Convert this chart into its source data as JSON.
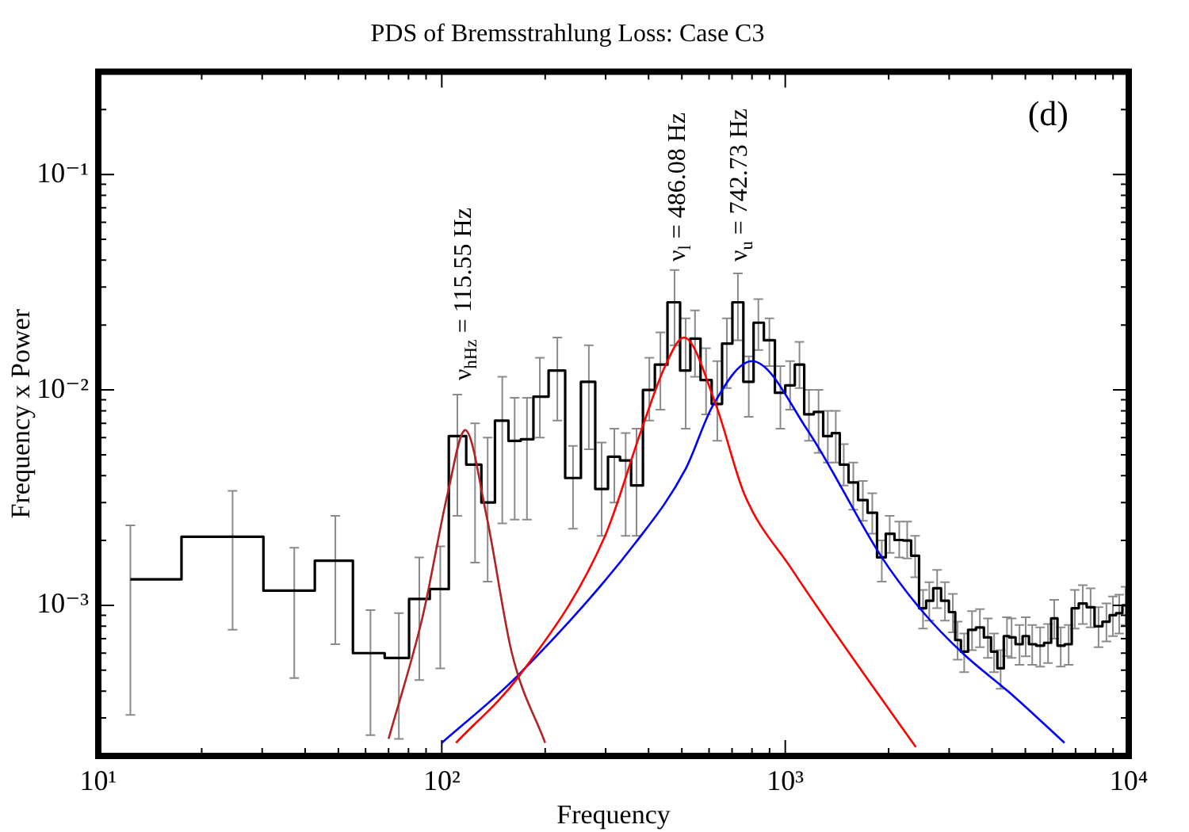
{
  "chart_data": {
    "type": "line",
    "title": "PDS of Bremsstrahlung Loss: Case C3",
    "xlabel": "Frequency",
    "ylabel": "Frequency x Power",
    "log": "xy",
    "grid": false,
    "legend": false,
    "marker": "none",
    "xlim": [
      10,
      10000
    ],
    "xticks": [
      {
        "value": 10,
        "label": "10¹"
      },
      {
        "value": 20,
        "label": null
      },
      {
        "value": 30,
        "label": null
      },
      {
        "value": 40,
        "label": null
      },
      {
        "value": 50,
        "label": null
      },
      {
        "value": 60,
        "label": null
      },
      {
        "value": 70,
        "label": null
      },
      {
        "value": 80,
        "label": null
      },
      {
        "value": 90,
        "label": null
      },
      {
        "value": 100,
        "label": "10²"
      },
      {
        "value": 200,
        "label": null
      },
      {
        "value": 300,
        "label": null
      },
      {
        "value": 400,
        "label": null
      },
      {
        "value": 500,
        "label": null
      },
      {
        "value": 600,
        "label": null
      },
      {
        "value": 700,
        "label": null
      },
      {
        "value": 800,
        "label": null
      },
      {
        "value": 900,
        "label": null
      },
      {
        "value": 1000,
        "label": "10³"
      },
      {
        "value": 2000,
        "label": null
      },
      {
        "value": 3000,
        "label": null
      },
      {
        "value": 4000,
        "label": null
      },
      {
        "value": 5000,
        "label": null
      },
      {
        "value": 6000,
        "label": null
      },
      {
        "value": 7000,
        "label": null
      },
      {
        "value": 8000,
        "label": null
      },
      {
        "value": 9000,
        "label": null
      },
      {
        "value": 10000,
        "label": "10⁴"
      }
    ],
    "ylim": [
      0.0002,
      0.3
    ],
    "yticks": [
      {
        "value": 0.0003,
        "label": null
      },
      {
        "value": 0.0004,
        "label": null
      },
      {
        "value": 0.0005,
        "label": null
      },
      {
        "value": 0.0006,
        "label": null
      },
      {
        "value": 0.0007,
        "label": null
      },
      {
        "value": 0.0008,
        "label": null
      },
      {
        "value": 0.0009,
        "label": null
      },
      {
        "value": 0.001,
        "label": "10⁻³"
      },
      {
        "value": 0.002,
        "label": null
      },
      {
        "value": 0.003,
        "label": null
      },
      {
        "value": 0.004,
        "label": null
      },
      {
        "value": 0.005,
        "label": null
      },
      {
        "value": 0.006,
        "label": null
      },
      {
        "value": 0.007,
        "label": null
      },
      {
        "value": 0.008,
        "label": null
      },
      {
        "value": 0.009,
        "label": null
      },
      {
        "value": 0.01,
        "label": "10⁻²"
      },
      {
        "value": 0.02,
        "label": null
      },
      {
        "value": 0.03,
        "label": null
      },
      {
        "value": 0.04,
        "label": null
      },
      {
        "value": 0.05,
        "label": null
      },
      {
        "value": 0.06,
        "label": null
      },
      {
        "value": 0.07,
        "label": null
      },
      {
        "value": 0.08,
        "label": null
      },
      {
        "value": 0.09,
        "label": null
      },
      {
        "value": 0.1,
        "label": "10⁻¹"
      },
      {
        "value": 0.2,
        "label": null
      },
      {
        "value": 0.3,
        "label": null
      }
    ],
    "annotations": [
      "ν$_{hHz}$ = 115.55 Hz",
      "ν$_{l}$ = 486.08 Hz",
      "ν$_{u}$ = 742.73 Hz",
      "(d)"
    ],
    "series": [
      {
        "type": "step",
        "color": "#000000",
        "x": [
          12.4,
          24.6,
          37.2,
          49,
          62,
          75,
          86,
          99,
          111,
          125,
          136,
          150,
          163,
          177,
          193,
          217,
          241,
          268,
          292,
          318,
          343,
          369,
          402,
          433,
          476,
          513,
          546,
          588,
          634,
          676,
          728,
          783,
          835,
          899,
          968,
          1033,
          1100,
          1172,
          1250,
          1330,
          1403,
          1480,
          1578,
          1682,
          1792,
          1910,
          2014,
          2147,
          2264,
          2388,
          2518,
          2626,
          2768,
          2917,
          3075,
          3175,
          3318,
          3497,
          3687,
          3890,
          4055,
          4236,
          4420,
          4560,
          4808,
          5012,
          5236,
          5521,
          5821,
          6067,
          6339,
          6683,
          6966,
          7345,
          7743,
          8166,
          8610,
          8990,
          9380,
          9790
        ],
        "values": [
          0.00132,
          0.00208,
          0.00117,
          0.00161,
          0.0006,
          0.00057,
          0.00107,
          0.00119,
          0.0061,
          0.0045,
          0.003,
          0.0072,
          0.0058,
          0.0059,
          0.0093,
          0.0123,
          0.0039,
          0.0109,
          0.00347,
          0.0049,
          0.0047,
          0.0036,
          0.01,
          0.0131,
          0.0255,
          0.0123,
          0.0173,
          0.0111,
          0.0086,
          0.0164,
          0.0255,
          0.0109,
          0.0205,
          0.017,
          0.0097,
          0.0105,
          0.0131,
          0.0077,
          0.0079,
          0.0061,
          0.0063,
          0.0045,
          0.00372,
          0.00308,
          0.00269,
          0.00167,
          0.00215,
          0.00201,
          0.002,
          0.0017,
          0.00097,
          0.00105,
          0.0012,
          0.00105,
          0.00093,
          0.00069,
          0.00061,
          0.00077,
          0.00079,
          0.00071,
          0.00061,
          0.00051,
          0.00072,
          0.00071,
          0.00066,
          0.00072,
          0.00066,
          0.00065,
          0.00067,
          0.00087,
          0.00065,
          0.00066,
          0.00097,
          0.00102,
          0.00098,
          0.0008,
          0.00084,
          0.0009,
          0.00092,
          0.001
        ],
        "errors": [
          [
            0.00031,
            0.00235
          ],
          [
            0.00077,
            0.0034
          ],
          [
            0.00046,
            0.00185
          ],
          [
            0.00066,
            0.0026
          ],
          [
            0.00025,
            0.00095
          ],
          [
            0.00024,
            0.00092
          ],
          [
            0.00045,
            0.00167
          ],
          [
            0.00051,
            0.00188
          ],
          [
            0.0026,
            0.0095
          ],
          [
            0.00158,
            0.007
          ],
          [
            0.00129,
            0.006
          ],
          [
            0.0024,
            0.0115
          ],
          [
            0.0025,
            0.0092
          ],
          [
            0.0025,
            0.0092
          ],
          [
            0.006,
            0.0141
          ],
          [
            0.0072,
            0.0175
          ],
          [
            0.00227,
            0.0055
          ],
          [
            0.0053,
            0.0161
          ],
          [
            0.0021,
            0.0057
          ],
          [
            0.003,
            0.0066
          ],
          [
            0.0021,
            0.0063
          ],
          [
            0.0021,
            0.0066
          ],
          [
            0.0072,
            0.0141
          ],
          [
            0.0081,
            0.0185
          ],
          [
            0.0161,
            0.036
          ],
          [
            0.0066,
            0.0215
          ],
          [
            0.0115,
            0.0234
          ],
          [
            0.0077,
            0.0156
          ],
          [
            0.0058,
            0.0136
          ],
          [
            0.0102,
            0.0215
          ],
          [
            0.017,
            0.0347
          ],
          [
            0.0075,
            0.0143
          ],
          [
            0.0153,
            0.0264
          ],
          [
            0.0129,
            0.0215
          ],
          [
            0.0066,
            0.0129
          ],
          [
            0.0081,
            0.0136
          ],
          [
            0.0102,
            0.0167
          ],
          [
            0.0058,
            0.01
          ],
          [
            0.0051,
            0.01
          ],
          [
            0.0046,
            0.008
          ],
          [
            0.0046,
            0.008
          ],
          [
            0.0036,
            0.0056
          ],
          [
            0.00278,
            0.0046
          ],
          [
            0.00247,
            0.00378
          ],
          [
            0.00215,
            0.00331
          ],
          [
            0.00129,
            0.002
          ],
          [
            0.00175,
            0.0026
          ],
          [
            0.00167,
            0.00245
          ],
          [
            0.00165,
            0.00245
          ],
          [
            0.00135,
            0.0021
          ],
          [
            0.00078,
            0.00118
          ],
          [
            0.00085,
            0.00128
          ],
          [
            0.00097,
            0.00146
          ],
          [
            0.00085,
            0.00128
          ],
          [
            0.00075,
            0.00113
          ],
          [
            0.00056,
            0.00084
          ],
          [
            0.00049,
            0.00074
          ],
          [
            0.00062,
            0.00094
          ],
          [
            0.00064,
            0.00096
          ],
          [
            0.00057,
            0.00087
          ],
          [
            0.00049,
            0.00074
          ],
          [
            0.00041,
            0.00062
          ],
          [
            0.00058,
            0.00088
          ],
          [
            0.00057,
            0.00087
          ],
          [
            0.00053,
            0.00081
          ],
          [
            0.00058,
            0.00088
          ],
          [
            0.00053,
            0.00081
          ],
          [
            0.00052,
            0.00079
          ],
          [
            0.00054,
            0.00082
          ],
          [
            0.0007,
            0.00106
          ],
          [
            0.00052,
            0.00079
          ],
          [
            0.00053,
            0.00081
          ],
          [
            0.00078,
            0.00118
          ],
          [
            0.00082,
            0.00124
          ],
          [
            0.00079,
            0.0012
          ],
          [
            0.00064,
            0.00098
          ],
          [
            0.00068,
            0.00102
          ],
          [
            0.00072,
            0.0011
          ],
          [
            0.00074,
            0.00112
          ],
          [
            0.00081,
            0.00122
          ]
        ]
      },
      {
        "type": "line",
        "color": "#b22222",
        "x": [
          70,
          88,
          104,
          117,
          135,
          160,
          200
        ],
        "values": [
          0.00024,
          0.00089,
          0.0033,
          0.0065,
          0.0026,
          0.0006,
          0.00023
        ]
      },
      {
        "type": "line",
        "color": "#ff0000",
        "x": [
          110,
          168,
          298,
          381,
          447,
          507,
          627,
          759,
          1042,
          1596,
          2400
        ],
        "values": [
          0.00023,
          0.00047,
          0.00208,
          0.0065,
          0.0129,
          0.0175,
          0.0086,
          0.0033,
          0.00148,
          0.00055,
          0.00022
        ]
      },
      {
        "type": "line",
        "color": "#0000ff",
        "x": [
          100,
          166,
          369,
          513,
          614,
          800,
          1161,
          1910,
          2518,
          3283,
          4613,
          6500
        ],
        "values": [
          0.00023,
          0.00047,
          0.00198,
          0.0043,
          0.0084,
          0.0136,
          0.0065,
          0.00167,
          0.00093,
          0.0006,
          0.00038,
          0.00023
        ]
      }
    ]
  }
}
